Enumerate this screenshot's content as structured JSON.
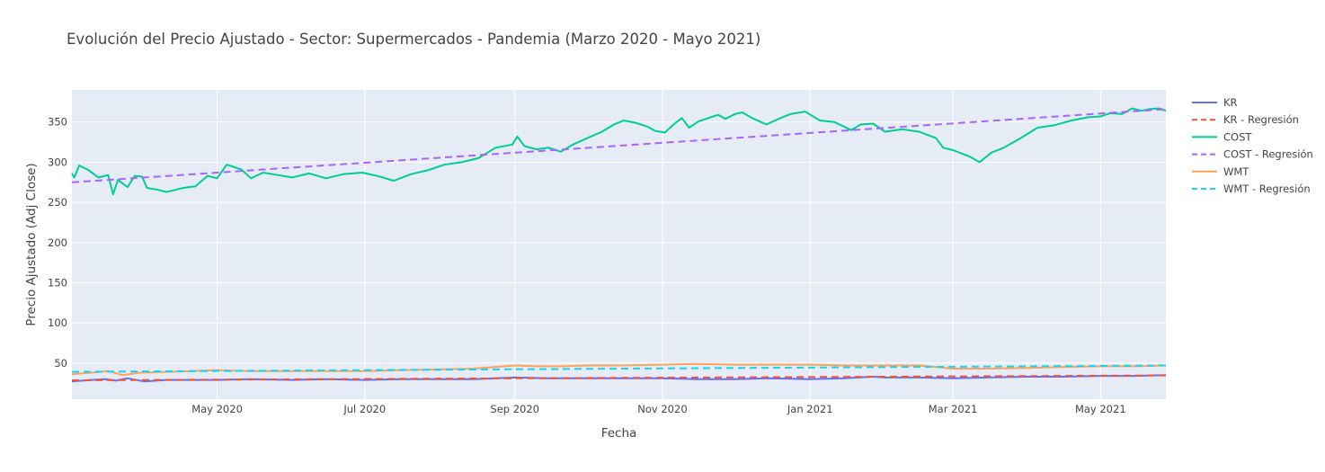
{
  "chart_data": {
    "type": "line",
    "title": "Evolución del Precio Ajustado - Sector: Supermercados - Pandemia (Marzo 2020 - Mayo 2021)",
    "xlabel": "Fecha",
    "ylabel": "Precio Ajustado (Adj Close)",
    "x_range": [
      "2020-03-02",
      "2021-05-28"
    ],
    "ylim": [
      5,
      390
    ],
    "y_ticks": [
      50,
      100,
      150,
      200,
      250,
      300,
      350
    ],
    "x_ticks": [
      {
        "date": "2020-05-01",
        "label": "May 2020"
      },
      {
        "date": "2020-07-01",
        "label": "Jul 2020"
      },
      {
        "date": "2020-09-01",
        "label": "Sep 2020"
      },
      {
        "date": "2020-11-01",
        "label": "Nov 2020"
      },
      {
        "date": "2021-01-01",
        "label": "Jan 2021"
      },
      {
        "date": "2021-03-01",
        "label": "Mar 2021"
      },
      {
        "date": "2021-05-01",
        "label": "May 2021"
      }
    ],
    "grid": true,
    "legend_position": "right",
    "series": [
      {
        "name": "KR",
        "color": "#636efa",
        "dash": "solid",
        "points": [
          [
            "2020-03-02",
            27
          ],
          [
            "2020-03-10",
            29
          ],
          [
            "2020-03-16",
            30
          ],
          [
            "2020-03-20",
            28
          ],
          [
            "2020-03-25",
            31
          ],
          [
            "2020-04-01",
            27
          ],
          [
            "2020-04-10",
            29
          ],
          [
            "2020-04-20",
            29
          ],
          [
            "2020-05-01",
            29
          ],
          [
            "2020-05-15",
            30
          ],
          [
            "2020-06-01",
            29
          ],
          [
            "2020-06-15",
            30
          ],
          [
            "2020-07-01",
            29
          ],
          [
            "2020-07-15",
            30
          ],
          [
            "2020-08-01",
            30
          ],
          [
            "2020-08-15",
            30
          ],
          [
            "2020-09-01",
            32
          ],
          [
            "2020-09-15",
            31
          ],
          [
            "2020-10-01",
            31
          ],
          [
            "2020-10-15",
            31
          ],
          [
            "2020-11-01",
            31
          ],
          [
            "2020-11-15",
            30
          ],
          [
            "2020-12-01",
            30
          ],
          [
            "2020-12-15",
            31
          ],
          [
            "2021-01-01",
            30
          ],
          [
            "2021-01-15",
            31
          ],
          [
            "2021-01-27",
            33
          ],
          [
            "2021-02-01",
            32
          ],
          [
            "2021-02-15",
            32
          ],
          [
            "2021-03-01",
            31
          ],
          [
            "2021-03-15",
            32
          ],
          [
            "2021-04-01",
            33
          ],
          [
            "2021-04-15",
            33
          ],
          [
            "2021-05-01",
            34
          ],
          [
            "2021-05-15",
            34
          ],
          [
            "2021-05-28",
            35
          ]
        ]
      },
      {
        "name": "KR - Regresión",
        "color": "#ef553b",
        "dash": "dash",
        "points": [
          [
            "2020-03-02",
            28.5
          ],
          [
            "2021-05-28",
            34.5
          ]
        ]
      },
      {
        "name": "COST",
        "color": "#00cc96",
        "dash": "solid",
        "points": [
          [
            "2020-03-02",
            286
          ],
          [
            "2020-03-03",
            281
          ],
          [
            "2020-03-05",
            296
          ],
          [
            "2020-03-09",
            290
          ],
          [
            "2020-03-13",
            281
          ],
          [
            "2020-03-17",
            284
          ],
          [
            "2020-03-19",
            260
          ],
          [
            "2020-03-21",
            278
          ],
          [
            "2020-03-25",
            269
          ],
          [
            "2020-03-28",
            283
          ],
          [
            "2020-03-31",
            282
          ],
          [
            "2020-04-02",
            268
          ],
          [
            "2020-04-06",
            266
          ],
          [
            "2020-04-10",
            263
          ],
          [
            "2020-04-13",
            265
          ],
          [
            "2020-04-17",
            268
          ],
          [
            "2020-04-22",
            270
          ],
          [
            "2020-04-27",
            283
          ],
          [
            "2020-05-01",
            280
          ],
          [
            "2020-05-05",
            297
          ],
          [
            "2020-05-11",
            291
          ],
          [
            "2020-05-15",
            280
          ],
          [
            "2020-05-20",
            287
          ],
          [
            "2020-05-26",
            284
          ],
          [
            "2020-06-01",
            281
          ],
          [
            "2020-06-08",
            286
          ],
          [
            "2020-06-15",
            280
          ],
          [
            "2020-06-22",
            285
          ],
          [
            "2020-06-30",
            287
          ],
          [
            "2020-07-06",
            283
          ],
          [
            "2020-07-13",
            277
          ],
          [
            "2020-07-20",
            285
          ],
          [
            "2020-07-27",
            290
          ],
          [
            "2020-08-03",
            297
          ],
          [
            "2020-08-10",
            300
          ],
          [
            "2020-08-17",
            305
          ],
          [
            "2020-08-24",
            318
          ],
          [
            "2020-08-31",
            322
          ],
          [
            "2020-09-02",
            332
          ],
          [
            "2020-09-05",
            320
          ],
          [
            "2020-09-10",
            316
          ],
          [
            "2020-09-15",
            318
          ],
          [
            "2020-09-20",
            313
          ],
          [
            "2020-09-25",
            322
          ],
          [
            "2020-10-01",
            330
          ],
          [
            "2020-10-07",
            338
          ],
          [
            "2020-10-12",
            347
          ],
          [
            "2020-10-16",
            352
          ],
          [
            "2020-10-21",
            349
          ],
          [
            "2020-10-26",
            344
          ],
          [
            "2020-10-29",
            339
          ],
          [
            "2020-11-02",
            337
          ],
          [
            "2020-11-06",
            348
          ],
          [
            "2020-11-09",
            355
          ],
          [
            "2020-11-12",
            343
          ],
          [
            "2020-11-16",
            351
          ],
          [
            "2020-11-20",
            355
          ],
          [
            "2020-11-24",
            359
          ],
          [
            "2020-11-27",
            354
          ],
          [
            "2020-12-01",
            360
          ],
          [
            "2020-12-04",
            362
          ],
          [
            "2020-12-08",
            355
          ],
          [
            "2020-12-14",
            347
          ],
          [
            "2020-12-19",
            354
          ],
          [
            "2020-12-24",
            360
          ],
          [
            "2020-12-30",
            363
          ],
          [
            "2021-01-05",
            352
          ],
          [
            "2021-01-11",
            350
          ],
          [
            "2021-01-18",
            340
          ],
          [
            "2021-01-22",
            347
          ],
          [
            "2021-01-27",
            348
          ],
          [
            "2021-02-01",
            338
          ],
          [
            "2021-02-08",
            341
          ],
          [
            "2021-02-15",
            338
          ],
          [
            "2021-02-22",
            330
          ],
          [
            "2021-02-25",
            318
          ],
          [
            "2021-03-01",
            315
          ],
          [
            "2021-03-08",
            307
          ],
          [
            "2021-03-12",
            300
          ],
          [
            "2021-03-17",
            312
          ],
          [
            "2021-03-22",
            318
          ],
          [
            "2021-03-29",
            330
          ],
          [
            "2021-04-05",
            343
          ],
          [
            "2021-04-12",
            346
          ],
          [
            "2021-04-19",
            352
          ],
          [
            "2021-04-26",
            356
          ],
          [
            "2021-05-01",
            357
          ],
          [
            "2021-05-05",
            361
          ],
          [
            "2021-05-10",
            360
          ],
          [
            "2021-05-14",
            367
          ],
          [
            "2021-05-18",
            364
          ],
          [
            "2021-05-21",
            366
          ],
          [
            "2021-05-25",
            367
          ],
          [
            "2021-05-28",
            364
          ]
        ]
      },
      {
        "name": "COST - Regresión",
        "color": "#ab63fa",
        "dash": "dash",
        "points": [
          [
            "2020-03-02",
            275
          ],
          [
            "2021-05-28",
            366
          ]
        ]
      },
      {
        "name": "WMT",
        "color": "#ffa15a",
        "dash": "solid",
        "points": [
          [
            "2020-03-02",
            36
          ],
          [
            "2020-03-10",
            38
          ],
          [
            "2020-03-17",
            40
          ],
          [
            "2020-03-23",
            35
          ],
          [
            "2020-03-30",
            38
          ],
          [
            "2020-04-10",
            39
          ],
          [
            "2020-04-20",
            40
          ],
          [
            "2020-05-01",
            41
          ],
          [
            "2020-05-15",
            40
          ],
          [
            "2020-06-01",
            40
          ],
          [
            "2020-06-15",
            40
          ],
          [
            "2020-07-01",
            40
          ],
          [
            "2020-07-15",
            41
          ],
          [
            "2020-08-01",
            42
          ],
          [
            "2020-08-15",
            43
          ],
          [
            "2020-09-01",
            47
          ],
          [
            "2020-09-10",
            46
          ],
          [
            "2020-09-20",
            46
          ],
          [
            "2020-10-01",
            47
          ],
          [
            "2020-10-15",
            47
          ],
          [
            "2020-11-01",
            48
          ],
          [
            "2020-11-15",
            49
          ],
          [
            "2020-12-01",
            48
          ],
          [
            "2020-12-15",
            48
          ],
          [
            "2021-01-01",
            48
          ],
          [
            "2021-01-15",
            47
          ],
          [
            "2021-02-01",
            47
          ],
          [
            "2021-02-15",
            47
          ],
          [
            "2021-03-01",
            43
          ],
          [
            "2021-03-15",
            43
          ],
          [
            "2021-04-01",
            44
          ],
          [
            "2021-04-15",
            45
          ],
          [
            "2021-05-01",
            46
          ],
          [
            "2021-05-15",
            46
          ],
          [
            "2021-05-28",
            47
          ]
        ]
      },
      {
        "name": "WMT - Regresión",
        "color": "#19d3f3",
        "dash": "dash",
        "points": [
          [
            "2020-03-02",
            39
          ],
          [
            "2021-05-28",
            47
          ]
        ]
      }
    ]
  }
}
